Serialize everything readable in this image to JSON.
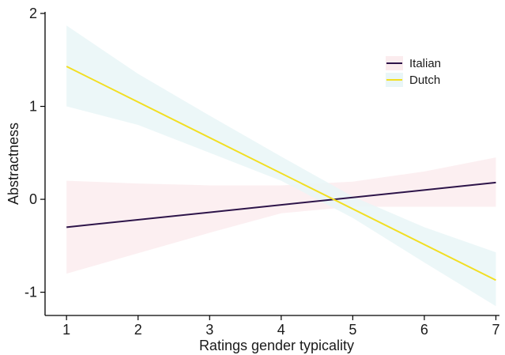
{
  "chart_data": {
    "type": "line",
    "title": "",
    "xlabel": "Ratings gender typicality",
    "ylabel": "Abstractness",
    "xlim": [
      0.7,
      7.05
    ],
    "ylim": [
      -1.25,
      2.0
    ],
    "xticks": [
      1,
      2,
      3,
      4,
      5,
      6,
      7
    ],
    "yticks": [
      -1,
      0,
      1,
      2
    ],
    "grid": false,
    "legend_position": "top-right",
    "series": [
      {
        "name": "Italian",
        "color": "#2d1449",
        "band_color": "#fbecee",
        "x": [
          1,
          7
        ],
        "y": [
          -0.3,
          0.18
        ],
        "band_x": [
          1,
          2,
          3,
          4,
          5,
          6,
          7
        ],
        "band_lower": [
          -0.8,
          -0.58,
          -0.36,
          -0.15,
          -0.08,
          -0.08,
          -0.08
        ],
        "band_upper": [
          0.2,
          0.17,
          0.15,
          0.15,
          0.19,
          0.3,
          0.45
        ]
      },
      {
        "name": "Dutch",
        "color": "#f2de22",
        "band_color": "#e9f6f7",
        "x": [
          1,
          7
        ],
        "y": [
          1.43,
          -0.87
        ],
        "band_x": [
          1,
          2,
          3,
          4,
          5,
          6,
          7
        ],
        "band_lower": [
          1.0,
          0.8,
          0.5,
          0.2,
          -0.2,
          -0.68,
          -1.15
        ],
        "band_upper": [
          1.87,
          1.35,
          0.9,
          0.46,
          0.03,
          -0.3,
          -0.57
        ]
      }
    ]
  }
}
